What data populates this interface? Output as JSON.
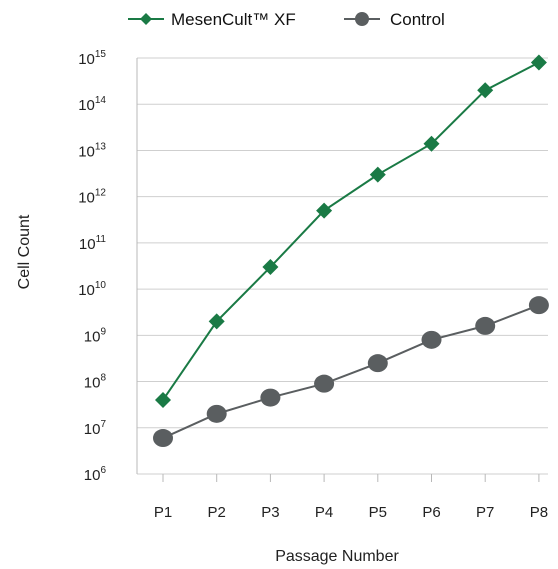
{
  "chart_data": {
    "type": "line",
    "xlabel": "Passage Number",
    "ylabel": "Cell Count",
    "categories": [
      "P1",
      "P2",
      "P3",
      "P4",
      "P5",
      "P6",
      "P7",
      "P8"
    ],
    "y_scale": "log",
    "ylim": [
      1000000.0,
      1000000000000000.0
    ],
    "y_ticks": [
      {
        "base": "10",
        "exp": "6",
        "value": 1000000.0
      },
      {
        "base": "10",
        "exp": "7",
        "value": 10000000.0
      },
      {
        "base": "10",
        "exp": "8",
        "value": 100000000.0
      },
      {
        "base": "10",
        "exp": "9",
        "value": 1000000000.0
      },
      {
        "base": "10",
        "exp": "10",
        "value": 10000000000.0
      },
      {
        "base": "10",
        "exp": "11",
        "value": 100000000000.0
      },
      {
        "base": "10",
        "exp": "12",
        "value": 1000000000000.0
      },
      {
        "base": "10",
        "exp": "13",
        "value": 10000000000000.0
      },
      {
        "base": "10",
        "exp": "14",
        "value": 100000000000000.0
      },
      {
        "base": "10",
        "exp": "15",
        "value": 1000000000000000.0
      }
    ],
    "grid": true,
    "legend_position": "top",
    "series": [
      {
        "name": "MesenCult™ XF",
        "marker": "diamond",
        "color": "#1a7a45",
        "values": [
          40000000.0,
          2000000000.0,
          30000000000.0,
          500000000000.0,
          3000000000000.0,
          14000000000000.0,
          200000000000000.0,
          800000000000000.0
        ]
      },
      {
        "name": "Control",
        "marker": "circle",
        "color": "#5a5e60",
        "values": [
          6000000.0,
          20000000.0,
          45000000.0,
          90000000.0,
          250000000.0,
          800000000.0,
          1600000000.0,
          4500000000.0
        ]
      }
    ]
  }
}
